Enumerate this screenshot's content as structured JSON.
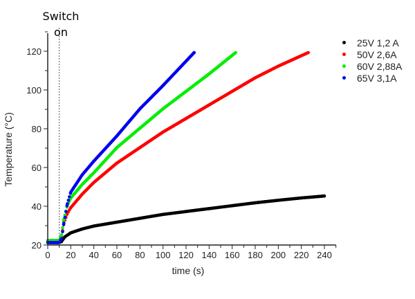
{
  "chart_data": {
    "type": "scatter",
    "title": "",
    "xlabel": "time (s)",
    "ylabel": "Temperature (°C)",
    "xlim": [
      0,
      250
    ],
    "ylim": [
      20,
      130
    ],
    "xticks": [
      0,
      20,
      40,
      60,
      80,
      100,
      120,
      140,
      160,
      180,
      200,
      220,
      240
    ],
    "yticks": [
      20,
      40,
      60,
      80,
      100,
      120
    ],
    "grid": false,
    "legend_position": "right",
    "annotations": [
      {
        "text": "Switch\non",
        "x": 10,
        "style": "dashed vertical line"
      }
    ],
    "series": [
      {
        "name": "25V 1,2 A",
        "color": "#000000",
        "x": [
          0,
          10,
          12,
          15,
          20,
          30,
          40,
          60,
          80,
          100,
          120,
          140,
          160,
          180,
          200,
          220,
          240
        ],
        "y": [
          22,
          22,
          22.5,
          25,
          27,
          29,
          30.5,
          32.5,
          34.5,
          36.5,
          38,
          39.5,
          41,
          42.5,
          43.8,
          45,
          46
        ]
      },
      {
        "name": "50V 2,6A",
        "color": "#ff0000",
        "x": [
          0,
          10,
          12,
          14,
          17,
          20,
          30,
          40,
          60,
          80,
          100,
          120,
          140,
          160,
          180,
          200,
          226
        ],
        "y": [
          23,
          23,
          25,
          32,
          37,
          40,
          47,
          53,
          63,
          71,
          79,
          86,
          93,
          100,
          107,
          113,
          120
        ]
      },
      {
        "name": "60V 2,88A",
        "color": "#00ee00",
        "x": [
          0,
          10,
          12,
          14,
          17,
          20,
          30,
          40,
          60,
          80,
          100,
          120,
          140,
          163
        ],
        "y": [
          23,
          23,
          26,
          34,
          41,
          45,
          52,
          58,
          71,
          81,
          91,
          100,
          109,
          120
        ]
      },
      {
        "name": "65V 3,1A",
        "color": "#0000ee",
        "x": [
          0,
          10,
          12,
          14,
          17,
          20,
          30,
          40,
          60,
          80,
          100,
          127
        ],
        "y": [
          22,
          22,
          24,
          32,
          42,
          48,
          57,
          64,
          77,
          91,
          103,
          120
        ]
      }
    ]
  },
  "annotation": {
    "switch_line1": "Switch",
    "switch_line2": "on"
  }
}
